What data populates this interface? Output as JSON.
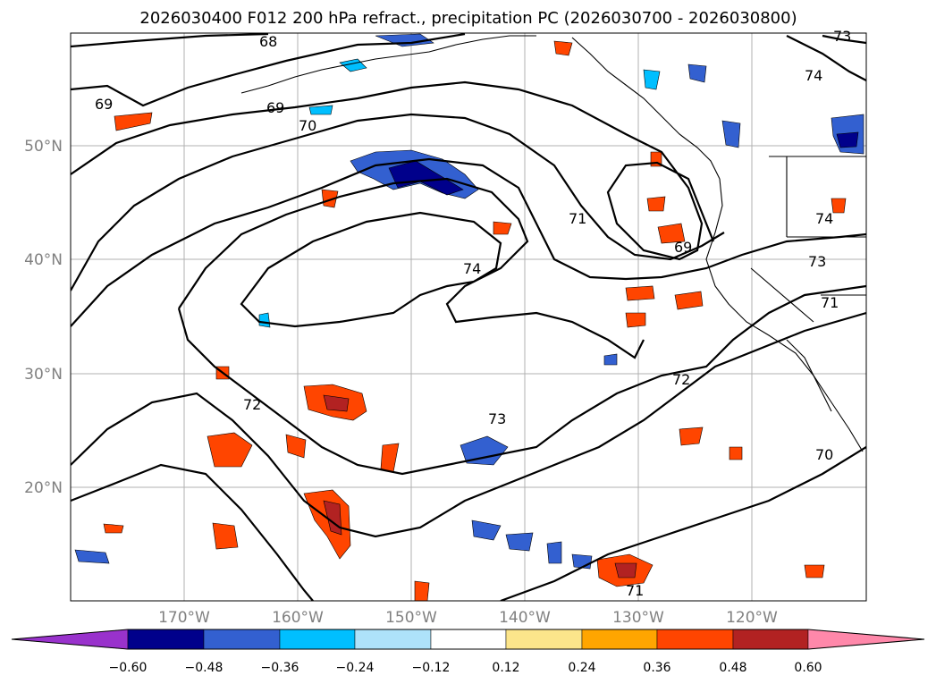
{
  "title": "2026030400 F012 200 hPa refract., precipitation PC (2026030700 - 2026030800)",
  "lat_labels": [
    "50°N",
    "40°N",
    "30°N",
    "20°N"
  ],
  "lon_labels": [
    "170°W",
    "160°W",
    "150°W",
    "140°W",
    "130°W",
    "120°W"
  ],
  "contour_labels": [
    "68",
    "69",
    "69",
    "70",
    "71",
    "69",
    "74",
    "74",
    "73",
    "73",
    "71",
    "72",
    "72",
    "73",
    "70",
    "71",
    "74"
  ],
  "colorbar": {
    "tick_labels": [
      "−0.60",
      "−0.48",
      "−0.36",
      "−0.24",
      "−0.12",
      "0.12",
      "0.24",
      "0.36",
      "0.48",
      "0.60"
    ],
    "colors": [
      "#9932cc",
      "#00008b",
      "#3360d0",
      "#00bfff",
      "#aee2fa",
      "#ffffff",
      "#fce58b",
      "#ffa500",
      "#ff4500",
      "#b22222",
      "#ff88aa"
    ]
  },
  "colors": {
    "land_line": "#000000",
    "grid": "#b0b0b0",
    "axis_label": "#808080"
  }
}
